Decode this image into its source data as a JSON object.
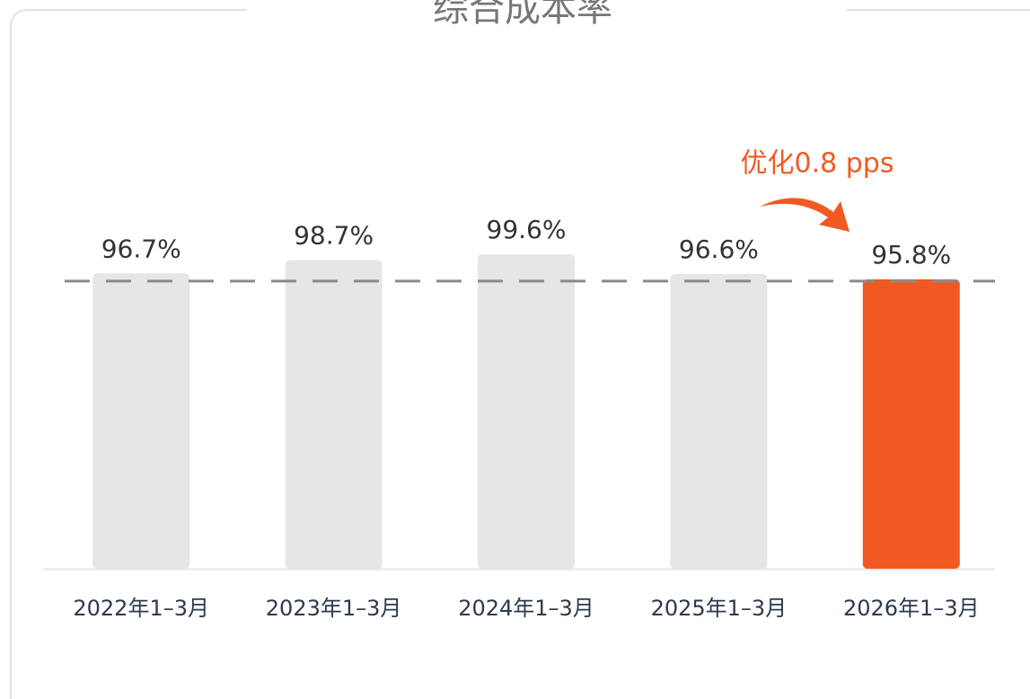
{
  "chart_data": {
    "type": "bar",
    "title": "综合成本率",
    "categories": [
      "2022年1–3月",
      "2023年1–3月",
      "2024年1–3月",
      "2025年1–3月",
      "2026年1–3月"
    ],
    "values": [
      96.7,
      98.7,
      99.6,
      96.6,
      95.8
    ],
    "value_labels": [
      "96.7%",
      "98.7%",
      "99.6%",
      "96.6%",
      "95.8%"
    ],
    "colors": [
      "#e5e6e8",
      "#e5e6e8",
      "#e5e6e8",
      "#e5e6e8",
      "#f05a22"
    ],
    "annotation": "优化0.8 pps",
    "ylim": [
      52,
      100
    ]
  }
}
